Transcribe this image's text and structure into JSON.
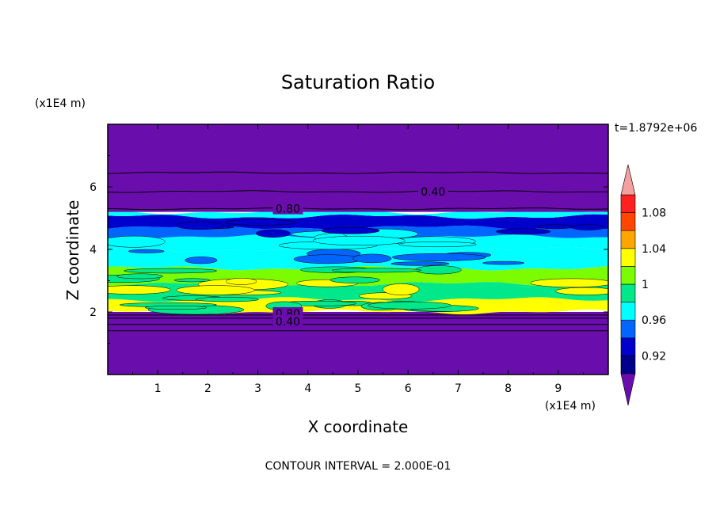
{
  "chart_data": {
    "type": "heatmap",
    "title": "Saturation Ratio",
    "xlabel": "X coordinate",
    "ylabel": "Z coordinate",
    "x_unit": "(x1E4 m)",
    "y_unit": "(x1E4 m)",
    "xlim": [
      0,
      10
    ],
    "ylim": [
      0,
      8
    ],
    "x_ticks": [
      "1",
      "2",
      "3",
      "4",
      "5",
      "6",
      "7",
      "8",
      "9"
    ],
    "y_ticks": [
      "2",
      "4",
      "6"
    ],
    "time_label": "t=1.8792e+06",
    "footer": "CONTOUR INTERVAL = 2.000E-01",
    "colorbar": {
      "levels": [
        0.9,
        0.92,
        0.94,
        0.96,
        0.98,
        1.0,
        1.02,
        1.04,
        1.06,
        1.08,
        1.1
      ],
      "tick_labels": [
        "0.92",
        "0.96",
        "1",
        "1.04",
        "1.08"
      ],
      "tick_values": [
        0.92,
        0.96,
        1.0,
        1.04,
        1.08
      ],
      "colors": [
        "#6a0dad",
        "#00008b",
        "#0000cd",
        "#0066ff",
        "#00ffff",
        "#00e88a",
        "#7cfc00",
        "#ffff00",
        "#ffa500",
        "#ff4500",
        "#ff2020",
        "#f4a0a0"
      ]
    },
    "layers": [
      {
        "z0": 0.0,
        "z1": 2.0,
        "value": 0.3
      },
      {
        "z0": 2.0,
        "z1": 2.4,
        "value": 1.02
      },
      {
        "z0": 2.4,
        "z1": 2.9,
        "value": 0.99
      },
      {
        "z0": 2.9,
        "z1": 3.4,
        "value": 1.01
      },
      {
        "z0": 3.4,
        "z1": 4.0,
        "value": 0.97
      },
      {
        "z0": 4.0,
        "z1": 4.4,
        "value": 0.965
      },
      {
        "z0": 4.4,
        "z1": 4.7,
        "value": 0.95
      },
      {
        "z0": 4.7,
        "z1": 5.05,
        "value": 0.92
      },
      {
        "z0": 5.05,
        "z1": 5.2,
        "value": 0.97
      },
      {
        "z0": 5.2,
        "z1": 8.0,
        "value": 0.3
      }
    ],
    "contour_lines_z": [
      1.4,
      1.6,
      1.8,
      1.9,
      5.3,
      5.85,
      6.45
    ],
    "contour_labels": [
      {
        "text": "0.40",
        "x": 6.5,
        "z": 5.85
      },
      {
        "text": "0.80",
        "x": 3.6,
        "z": 5.3
      },
      {
        "text": "0.80",
        "x": 3.6,
        "z": 1.95
      },
      {
        "text": "0.40",
        "x": 3.6,
        "z": 1.7
      }
    ]
  }
}
